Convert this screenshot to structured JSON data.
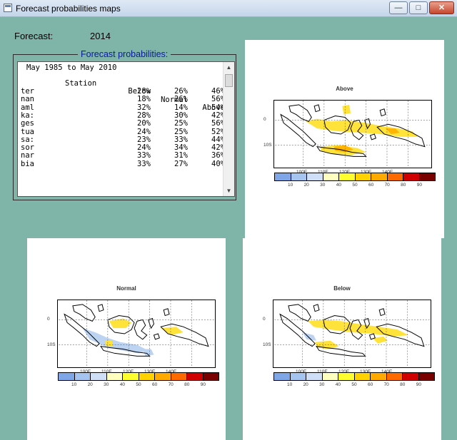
{
  "window": {
    "title": "Forecast probabilities maps"
  },
  "forecast": {
    "label": "Forecast:",
    "year": "2014"
  },
  "probabilities": {
    "legend": "Forecast probabilities:",
    "period": "May 1985 to May 2010",
    "columns": {
      "station": "Station",
      "below": "Below",
      "normal": "Normal",
      "above": "Above"
    },
    "rows": [
      {
        "station": "ter",
        "below": "28%",
        "normal": "26%",
        "above": "46%"
      },
      {
        "station": "nan",
        "below": "18%",
        "normal": "26%",
        "above": "56%"
      },
      {
        "station": "aml",
        "below": "32%",
        "normal": "14%",
        "above": "54%"
      },
      {
        "station": "ka:",
        "below": "28%",
        "normal": "30%",
        "above": "42%"
      },
      {
        "station": "ges",
        "below": "20%",
        "normal": "25%",
        "above": "56%"
      },
      {
        "station": "tua",
        "below": "24%",
        "normal": "25%",
        "above": "52%"
      },
      {
        "station": "sa:",
        "below": "23%",
        "normal": "33%",
        "above": "44%"
      },
      {
        "station": "sor",
        "below": "24%",
        "normal": "34%",
        "above": "42%"
      },
      {
        "station": "nar",
        "below": "33%",
        "normal": "31%",
        "above": "36%"
      },
      {
        "station": "bia",
        "below": "33%",
        "normal": "27%",
        "above": "40%"
      }
    ]
  },
  "maps": {
    "above": {
      "title": "Above"
    },
    "normal": {
      "title": "Normal"
    },
    "below": {
      "title": "Below"
    },
    "lat_labels": [
      "0",
      "10S"
    ],
    "lon_labels": [
      "100E",
      "110E",
      "120E",
      "130E",
      "140E"
    ],
    "colorbar_labels": [
      "10",
      "20",
      "30",
      "40",
      "50",
      "60",
      "70",
      "80",
      "90"
    ],
    "colorbar_colors": [
      "#7fa7e8",
      "#a6c4f0",
      "#cfdff7",
      "#ffffc0",
      "#ffff30",
      "#ffd200",
      "#ffaa00",
      "#ff6a00",
      "#d00000",
      "#7a0000"
    ],
    "accent": {
      "land_yellow": "#ffe23a",
      "land_orange": "#ffb400",
      "land_blue": "#bcd3f2"
    }
  }
}
